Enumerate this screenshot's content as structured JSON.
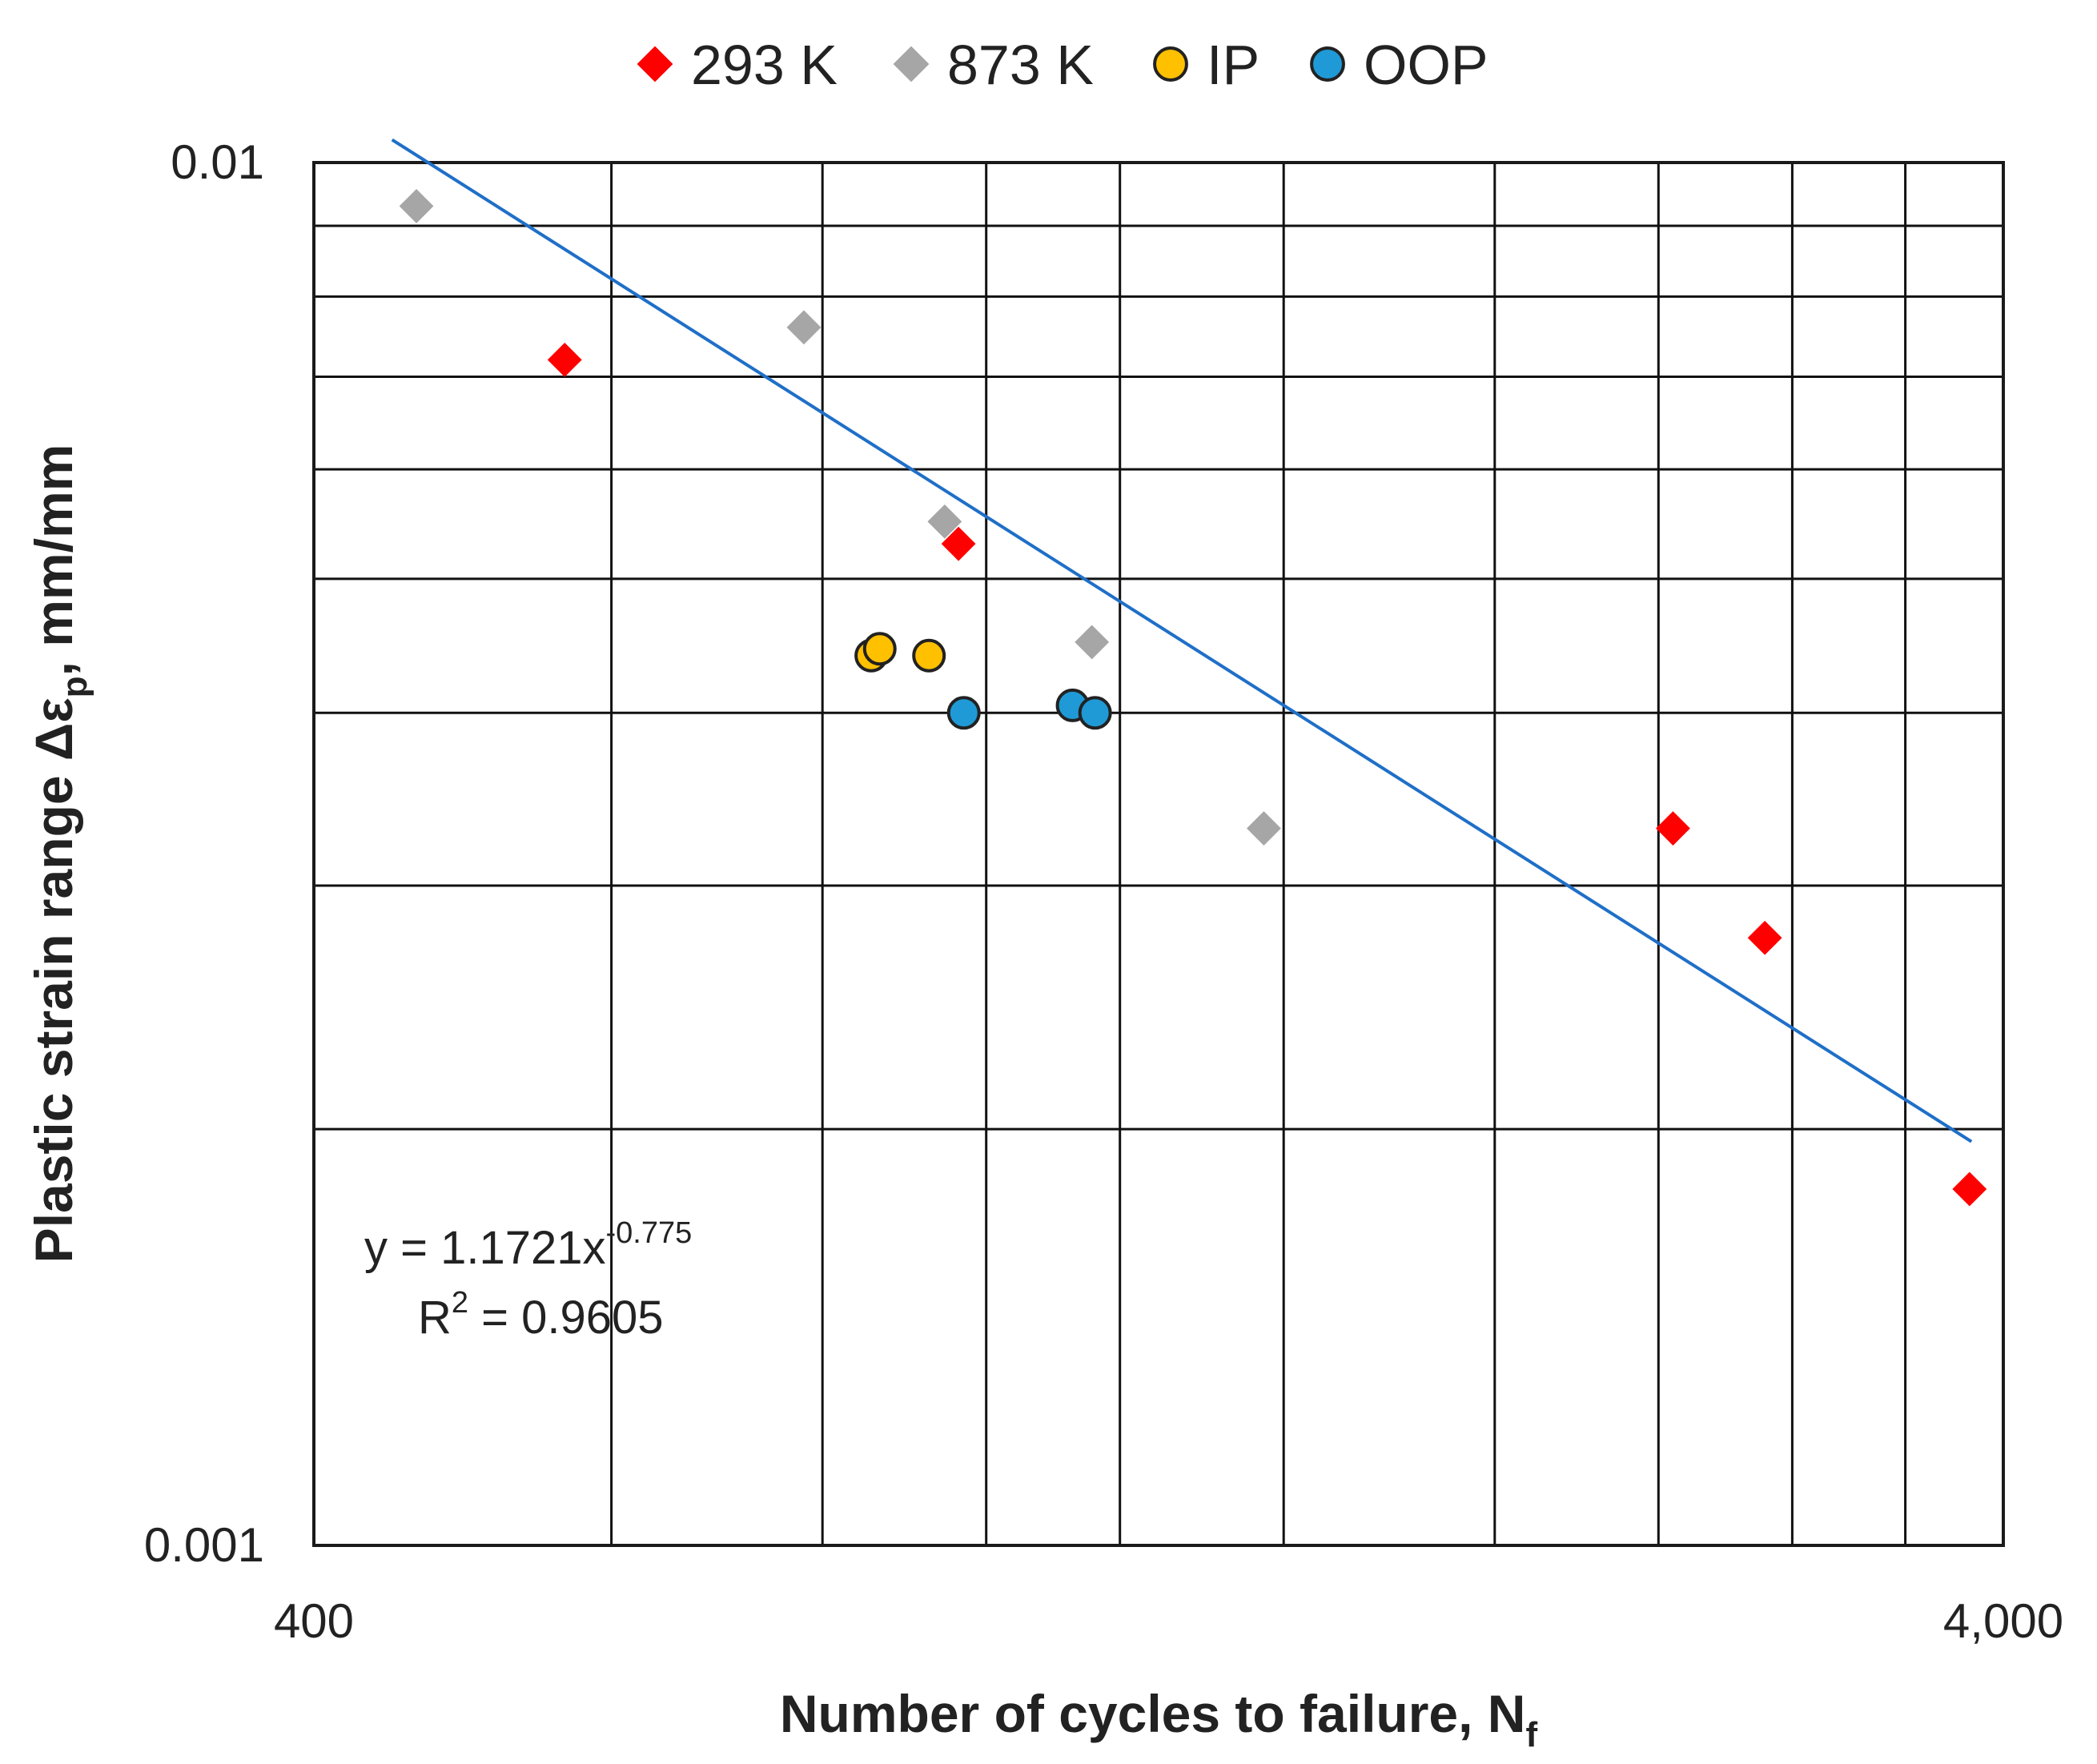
{
  "chart_data": {
    "type": "scatter",
    "xscale": "log",
    "yscale": "log",
    "xlim": [
      400,
      4000
    ],
    "ylim": [
      0.001,
      0.01
    ],
    "x_tick_labels": [
      {
        "value": 400,
        "label": "400"
      },
      {
        "value": 4000,
        "label": "4,000"
      }
    ],
    "y_tick_labels": [
      {
        "value": 0.01,
        "label": "0.01"
      },
      {
        "value": 0.001,
        "label": "0.001"
      }
    ],
    "x_gridlines": [
      600,
      800,
      1000,
      1200,
      1500,
      2000,
      2500,
      3000,
      3500
    ],
    "y_gridlines": [
      0.002,
      0.003,
      0.004,
      0.005,
      0.006,
      0.007,
      0.008,
      0.009,
      0.01
    ],
    "xlabel": "Number of cycles to failure, N",
    "xlabel_sub": "f",
    "ylabel": "Plastic strain range Δε",
    "ylabel_sub": "p",
    "ylabel_suffix": ", mm/mm",
    "legend_position": "top-center",
    "series": [
      {
        "name": "293 K",
        "marker": "diamond",
        "color": "#ff0000",
        "stroke": "#ff0000",
        "points": [
          [
            563,
            0.0072
          ],
          [
            963,
            0.0053
          ],
          [
            2550,
            0.0033
          ],
          [
            2890,
            0.00275
          ],
          [
            3820,
            0.00181
          ]
        ]
      },
      {
        "name": "873 K",
        "marker": "diamond",
        "color": "#a6a6a6",
        "stroke": "#a6a6a6",
        "points": [
          [
            460,
            0.0093
          ],
          [
            780,
            0.0076
          ],
          [
            945,
            0.0055
          ],
          [
            1155,
            0.0045
          ],
          [
            1460,
            0.0033
          ]
        ]
      },
      {
        "name": "IP",
        "marker": "circle",
        "color": "#ffc000",
        "stroke": "#222222",
        "points": [
          [
            855,
            0.0044
          ],
          [
            865,
            0.00445
          ],
          [
            925,
            0.0044
          ]
        ]
      },
      {
        "name": "OOP",
        "marker": "circle",
        "color": "#1f9ad6",
        "stroke": "#222222",
        "points": [
          [
            970,
            0.004
          ],
          [
            1125,
            0.00405
          ],
          [
            1160,
            0.004
          ]
        ]
      }
    ],
    "trendline": {
      "color": "#1f6fc8",
      "equation_prefix": "y = 1.1721x",
      "equation_exponent": "-0.775",
      "r2_prefix": "R",
      "r2_sup": "2",
      "r2_value": " = 0.9605",
      "coef": 1.1721,
      "exponent": -0.775,
      "x_range": [
        445,
        3830
      ]
    }
  }
}
